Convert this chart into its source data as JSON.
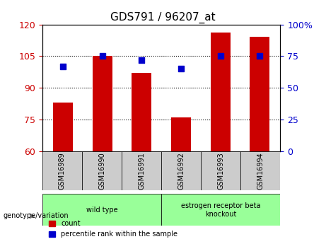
{
  "title": "GDS791 / 96207_at",
  "categories": [
    "GSM16989",
    "GSM16990",
    "GSM16991",
    "GSM16992",
    "GSM16993",
    "GSM16994"
  ],
  "bar_values": [
    83,
    105,
    97,
    76,
    116,
    114
  ],
  "scatter_values": [
    67,
    75,
    72,
    65,
    75,
    75
  ],
  "ylim_left": [
    60,
    120
  ],
  "ylim_right": [
    0,
    100
  ],
  "yticks_left": [
    60,
    75,
    90,
    105,
    120
  ],
  "yticks_right": [
    0,
    25,
    50,
    75,
    100
  ],
  "bar_color": "#cc0000",
  "scatter_color": "#0000cc",
  "bar_width": 0.5,
  "groups": [
    {
      "label": "wild type",
      "indices": [
        0,
        1,
        2
      ],
      "color": "#99ff99"
    },
    {
      "label": "estrogen receptor beta\nknockout",
      "indices": [
        3,
        4,
        5
      ],
      "color": "#99ff99"
    }
  ],
  "group_label": "genotype/variation",
  "legend_bar": "count",
  "legend_scatter": "percentile rank within the sample",
  "tick_label_bg": "#cccccc",
  "right_axis_label_color": "#0000cc",
  "left_axis_label_color": "#cc0000",
  "dotted_line_color": "#000000",
  "yticks_right_labels": [
    "0",
    "25",
    "50",
    "75",
    "100%"
  ]
}
